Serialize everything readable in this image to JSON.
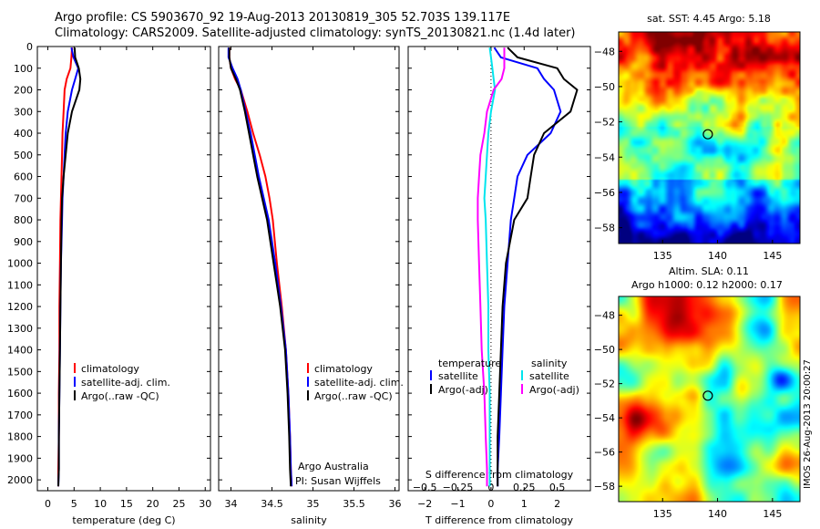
{
  "header": {
    "line1": "Argo profile: CS 5903670_92 19-Aug-2013 20130819_305 52.703S 139.117E",
    "line2": "Climatology: CARS2009. Satellite-adjusted climatology: synTS_20130821.nc (1.4d later)"
  },
  "colors": {
    "climatology": "#ff0000",
    "satellite": "#0000ff",
    "argo": "#000000",
    "salinity_satellite": "#00e5ee",
    "salinity_argo": "#ff00ff"
  },
  "chart_data": [
    {
      "type": "line",
      "id": "temperature",
      "xlabel": "temperature (deg C)",
      "xlim": [
        -2,
        31
      ],
      "xticks": [
        0,
        5,
        10,
        15,
        20,
        25,
        30
      ],
      "ylim": [
        0,
        2050
      ],
      "yticks": [
        0,
        100,
        200,
        300,
        400,
        500,
        600,
        700,
        800,
        900,
        1000,
        1100,
        1200,
        1300,
        1400,
        1500,
        1600,
        1700,
        1800,
        1900,
        2000
      ],
      "legend": [
        "climatology",
        "satellite-adj. clim.",
        "Argo(..raw -QC)"
      ],
      "series": [
        {
          "name": "climatology",
          "color": "#ff0000",
          "x": [
            4.6,
            4.5,
            4.3,
            3.6,
            3.2,
            3.0,
            2.8,
            2.7,
            2.6,
            2.5,
            2.4,
            2.3,
            2.2,
            2.2,
            2.1,
            2.1,
            2.0,
            2.0
          ],
          "y": [
            5,
            50,
            100,
            150,
            200,
            300,
            400,
            500,
            600,
            700,
            800,
            1000,
            1200,
            1400,
            1600,
            1800,
            1950,
            2030
          ]
        },
        {
          "name": "satellite-adj. clim.",
          "color": "#0000ff",
          "x": [
            4.5,
            4.9,
            5.8,
            5.2,
            4.6,
            3.8,
            3.4,
            3.2,
            3.0,
            2.8,
            2.7,
            2.5,
            2.4,
            2.3,
            2.2,
            2.1,
            2.1,
            2.0
          ],
          "y": [
            5,
            50,
            100,
            150,
            200,
            300,
            400,
            500,
            600,
            700,
            800,
            1000,
            1200,
            1400,
            1600,
            1800,
            1950,
            2030
          ]
        },
        {
          "name": "Argo(..raw -QC)",
          "color": "#000000",
          "x": [
            5.1,
            5.2,
            5.9,
            6.2,
            6.0,
            4.6,
            3.8,
            3.4,
            3.0,
            2.7,
            2.6,
            2.5,
            2.4,
            2.3,
            2.2,
            2.1,
            2.1,
            2.0
          ],
          "y": [
            5,
            50,
            100,
            150,
            200,
            300,
            400,
            500,
            600,
            700,
            800,
            1000,
            1200,
            1400,
            1600,
            1800,
            1950,
            2030
          ]
        }
      ]
    },
    {
      "type": "line",
      "id": "salinity",
      "xlabel": "salinity",
      "xlim": [
        33.85,
        36.05
      ],
      "xticks": [
        34,
        34.5,
        35,
        35.5,
        36
      ],
      "ylim": [
        0,
        2050
      ],
      "legend": [
        "climatology",
        "satellite-adj. clim.",
        "Argo(..raw -QC)"
      ],
      "annotation": [
        "Argo Australia",
        "PI: Susan Wijffels"
      ],
      "series": [
        {
          "name": "climatology",
          "color": "#ff0000",
          "x": [
            33.98,
            33.98,
            34.0,
            34.05,
            34.12,
            34.2,
            34.27,
            34.35,
            34.42,
            34.47,
            34.51,
            34.56,
            34.62,
            34.67,
            34.7,
            34.72,
            34.73,
            34.74
          ],
          "y": [
            5,
            50,
            100,
            150,
            200,
            300,
            400,
            500,
            600,
            700,
            800,
            1000,
            1200,
            1400,
            1600,
            1800,
            1950,
            2030
          ]
        },
        {
          "name": "satellite-adj. clim.",
          "color": "#0000ff",
          "x": [
            33.97,
            33.97,
            34.02,
            34.08,
            34.12,
            34.18,
            34.24,
            34.29,
            34.34,
            34.4,
            34.46,
            34.54,
            34.61,
            34.67,
            34.7,
            34.72,
            34.73,
            34.74
          ],
          "y": [
            5,
            50,
            100,
            150,
            200,
            300,
            400,
            500,
            600,
            700,
            800,
            1000,
            1200,
            1400,
            1600,
            1800,
            1950,
            2030
          ]
        },
        {
          "name": "Argo(..raw -QC)",
          "color": "#000000",
          "x": [
            33.98,
            33.98,
            34.0,
            34.06,
            34.11,
            34.17,
            34.22,
            34.27,
            34.32,
            34.38,
            34.44,
            34.52,
            34.6,
            34.66,
            34.69,
            34.71,
            34.72,
            34.73
          ],
          "y": [
            5,
            50,
            100,
            150,
            200,
            300,
            400,
            500,
            600,
            700,
            800,
            1000,
            1200,
            1400,
            1600,
            1800,
            1950,
            2030
          ]
        }
      ]
    },
    {
      "type": "line",
      "id": "difference",
      "xlabel": "T difference from climatology",
      "x2label": "S difference from climatology",
      "xlim": [
        -2.5,
        3.0
      ],
      "xticks": [
        -2,
        -1,
        0,
        1,
        2
      ],
      "x2lim": [
        -0.625,
        0.75
      ],
      "x2ticks": [
        -0.5,
        -0.25,
        0,
        0.25,
        0.5
      ],
      "ylim": [
        0,
        2050
      ],
      "legend_left_title": "temperature",
      "legend_right_title": "salinity",
      "legend": [
        "satellite",
        "Argo(-adj)",
        "satellite",
        "Argo(-adj)"
      ],
      "series": [
        {
          "name": "temperature satellite",
          "color": "#0000ff",
          "x": [
            0.1,
            0.3,
            1.4,
            1.6,
            1.9,
            2.1,
            1.8,
            1.1,
            0.8,
            0.7,
            0.6,
            0.5,
            0.4,
            0.35,
            0.3,
            0.25,
            0.2,
            0.2
          ],
          "y": [
            5,
            50,
            100,
            150,
            200,
            300,
            400,
            500,
            600,
            700,
            800,
            1000,
            1200,
            1400,
            1600,
            1800,
            1950,
            2030
          ]
        },
        {
          "name": "temperature Argo(-adj)",
          "color": "#000000",
          "x": [
            0.5,
            0.8,
            2.0,
            2.2,
            2.6,
            2.4,
            1.6,
            1.3,
            1.2,
            1.1,
            0.7,
            0.45,
            0.35,
            0.3,
            0.25,
            0.2,
            0.2,
            0.2
          ],
          "y": [
            5,
            50,
            100,
            150,
            200,
            300,
            400,
            500,
            600,
            700,
            800,
            1000,
            1200,
            1400,
            1600,
            1800,
            1950,
            2030
          ]
        },
        {
          "name": "salinity satellite",
          "color": "#00e5ee",
          "x": [
            -0.01,
            0.0,
            0.01,
            0.02,
            0.03,
            0.0,
            -0.02,
            -0.03,
            -0.04,
            -0.05,
            -0.04,
            -0.03,
            -0.02,
            -0.02,
            -0.01,
            -0.01,
            -0.01,
            -0.01
          ],
          "y": [
            5,
            50,
            100,
            150,
            200,
            300,
            400,
            500,
            600,
            700,
            800,
            1000,
            1200,
            1400,
            1600,
            1800,
            1950,
            2030
          ]
        },
        {
          "name": "salinity Argo(-adj)",
          "color": "#ff00ff",
          "x": [
            0.1,
            0.1,
            0.1,
            0.08,
            0.02,
            -0.03,
            -0.05,
            -0.08,
            -0.09,
            -0.1,
            -0.1,
            -0.09,
            -0.08,
            -0.07,
            -0.05,
            -0.04,
            -0.03,
            -0.03
          ],
          "y": [
            5,
            50,
            100,
            150,
            200,
            300,
            400,
            500,
            600,
            700,
            800,
            1000,
            1200,
            1400,
            1600,
            1800,
            1950,
            2030
          ]
        }
      ]
    },
    {
      "type": "heatmap",
      "id": "sst-map",
      "title": "sat. SST: 4.45 Argo: 5.18",
      "xlim": [
        131.0,
        147.5
      ],
      "ylim": [
        -58.9,
        -46.9
      ],
      "xticks": [
        135,
        140,
        145
      ],
      "yticks": [
        -48,
        -50,
        -52,
        -54,
        -56,
        -58
      ],
      "marker": [
        139.117,
        -52.703
      ],
      "colormap": "jet"
    },
    {
      "type": "heatmap",
      "id": "sla-map",
      "title": "Altim. SLA: 0.11",
      "subtitle": "Argo h1000: 0.12 h2000: 0.17",
      "side_label": "IMOS 26-Aug-2013 20:00:27",
      "xlim": [
        131.0,
        147.5
      ],
      "ylim": [
        -58.9,
        -46.9
      ],
      "xticks": [
        135,
        140,
        145
      ],
      "yticks": [
        -48,
        -50,
        -52,
        -54,
        -56,
        -58
      ],
      "marker": [
        139.117,
        -52.703
      ],
      "colormap": "jet"
    }
  ]
}
